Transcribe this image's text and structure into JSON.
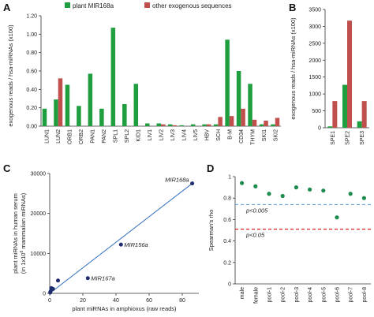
{
  "panels": {
    "A": "A",
    "B": "B",
    "C": "C",
    "D": "D"
  },
  "legend": {
    "series1": "plant MIR168a",
    "series2": "other exogenous sequences"
  },
  "colors": {
    "green": "#1e9e3e",
    "red": "#c0504d",
    "navy": "#1f2d6e",
    "teal_green": "#1d8a4e",
    "blue_line": "#2f6fbf",
    "dash_blue": "#5b9bd5",
    "dash_red": "#e02020"
  },
  "chart_data": [
    {
      "panel": "A",
      "type": "bar",
      "ylabel": "exogenous reads / hsa-miRNAs (x100)",
      "ylim": [
        0,
        1.2
      ],
      "yticks": [
        "0.00",
        "0.20",
        "0.40",
        "0.60",
        "0.80",
        "1.00",
        "1.20"
      ],
      "categories": [
        "LUN1",
        "LUN2",
        "ORB1",
        "ORB2",
        "PAN1",
        "PAN2",
        "SPL1",
        "SPL2",
        "KID1",
        "LIV1",
        "LIV2",
        "LIV3",
        "LIV4",
        "LIV5",
        "HBV",
        "SCH",
        "B-M",
        "CD34",
        "THYM",
        "SKI1",
        "SKI2"
      ],
      "series": [
        {
          "name": "plant MIR168a",
          "values": [
            0.19,
            0.29,
            0.45,
            0.22,
            0.57,
            0.19,
            1.07,
            0.24,
            0.46,
            0.03,
            0.03,
            0.02,
            0.01,
            0.02,
            0.02,
            0.02,
            0.94,
            0.6,
            0.46,
            0.02,
            0.02
          ]
        },
        {
          "name": "other exogenous sequences",
          "values": [
            0,
            0.52,
            0,
            0,
            0,
            0,
            0,
            0,
            0,
            0,
            0.02,
            0.01,
            0,
            0,
            0.02,
            0.1,
            0.11,
            0.19,
            0.07,
            0.06,
            0.09
          ]
        }
      ]
    },
    {
      "panel": "B",
      "type": "bar",
      "ylabel": "exogenous reads / hsa-miRNAs (x100)",
      "ylim": [
        0,
        3500
      ],
      "yticks": [
        "0",
        "500",
        "1000",
        "1500",
        "2000",
        "2500",
        "3000",
        "3500"
      ],
      "categories": [
        "SPE1",
        "SPE2",
        "SPE3"
      ],
      "series": [
        {
          "name": "plant MIR168a",
          "values": [
            40,
            1270,
            190
          ]
        },
        {
          "name": "other exogenous sequences",
          "values": [
            790,
            3170,
            790
          ]
        }
      ]
    },
    {
      "panel": "C",
      "type": "scatter",
      "xlabel": "plant miRNAs in amphioxus    (raw reads)",
      "ylabel_lines": [
        "plant miRNAs in human serum",
        "(in 1x10",
        "6",
        " mammalian miRNAs)"
      ],
      "xlim": [
        0,
        90
      ],
      "ylim": [
        0,
        30000
      ],
      "xticks": [
        "0",
        "20",
        "40",
        "60",
        "80"
      ],
      "yticks": [
        "0",
        "10000",
        "20000",
        "30000"
      ],
      "points": [
        {
          "x": 86,
          "y": 27500,
          "label": "MIR168a"
        },
        {
          "x": 43,
          "y": 12200,
          "label": "MIR156a"
        },
        {
          "x": 23,
          "y": 3800,
          "label": "MIR167a"
        },
        {
          "x": 5,
          "y": 3200,
          "label": ""
        },
        {
          "x": 1,
          "y": 1300,
          "label": ""
        },
        {
          "x": 2,
          "y": 1100,
          "label": ""
        },
        {
          "x": 0.5,
          "y": 500,
          "label": ""
        },
        {
          "x": 0.3,
          "y": 200,
          "label": ""
        }
      ],
      "fit": [
        [
          0,
          0
        ],
        [
          86,
          27500
        ]
      ]
    },
    {
      "panel": "D",
      "type": "scatter",
      "ylabel": "Spearman's rho",
      "ylim": [
        0,
        1
      ],
      "yticks": [
        "0",
        "0.2",
        "0.4",
        "0.6",
        "0.8",
        "1"
      ],
      "categories": [
        "male",
        "female",
        "pool-1",
        "pool-2",
        "pool-3",
        "pool-4",
        "pool-5",
        "pool-6",
        "pool-7",
        "pool-8"
      ],
      "values": [
        0.94,
        0.91,
        0.84,
        0.82,
        0.9,
        0.88,
        0.87,
        0.62,
        0.84,
        0.8
      ],
      "thresholds": [
        {
          "label": "p<0.005",
          "value": 0.74
        },
        {
          "label": "p<0.05",
          "value": 0.51
        }
      ]
    }
  ]
}
